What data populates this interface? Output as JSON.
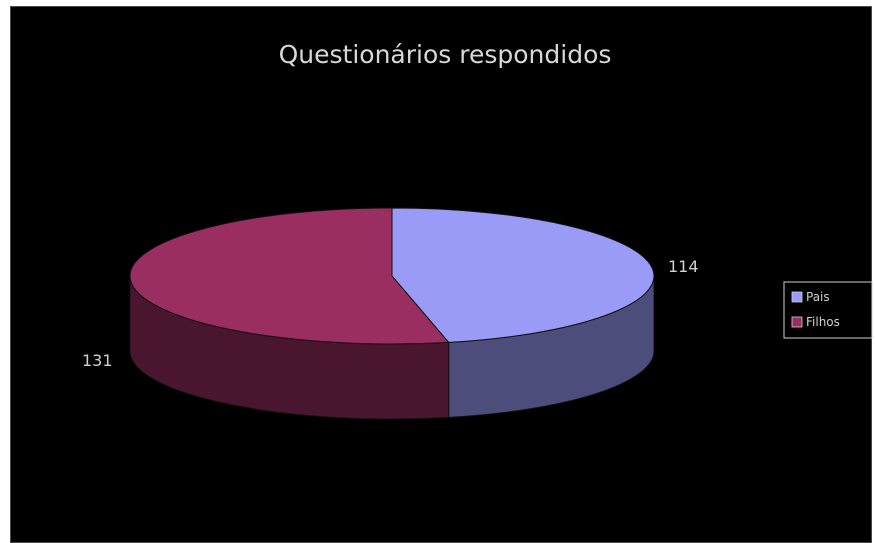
{
  "chart_data": {
    "type": "pie",
    "title": "Questionários respondidos",
    "subtitle": "",
    "categories": [
      "Pais",
      "Filhos"
    ],
    "values": [
      114,
      131
    ],
    "colors": [
      "#9a9af7",
      "#9b2e61"
    ],
    "data_labels": [
      "114",
      "131"
    ],
    "legend": {
      "position": "right",
      "entries": [
        "Pais",
        "Filhos"
      ]
    },
    "three_d": true,
    "grid": false,
    "background": "#000000"
  }
}
